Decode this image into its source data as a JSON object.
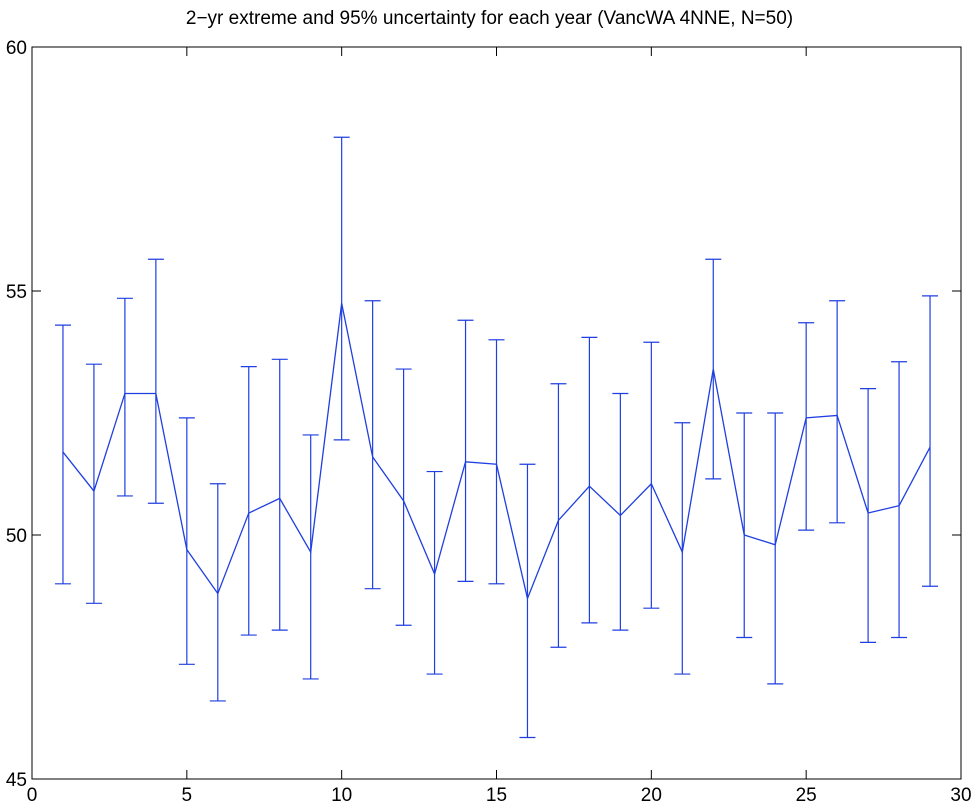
{
  "chart_data": {
    "type": "line",
    "title": "2−yr extreme and 95% uncertainty for each year (VancWA 4NNE, N=50)",
    "xlabel": "",
    "ylabel": "",
    "xlim": [
      0,
      30
    ],
    "ylim": [
      45,
      60
    ],
    "xticks": [
      0,
      5,
      10,
      15,
      20,
      25,
      30
    ],
    "yticks": [
      45,
      50,
      55,
      60
    ],
    "grid": false,
    "color": "#1f3fe0",
    "x": [
      1,
      2,
      3,
      4,
      5,
      6,
      7,
      8,
      9,
      10,
      11,
      12,
      13,
      14,
      15,
      16,
      17,
      18,
      19,
      20,
      21,
      22,
      23,
      24,
      25,
      26,
      27,
      28,
      29
    ],
    "values": [
      51.7,
      50.9,
      52.9,
      52.9,
      49.7,
      48.8,
      50.45,
      50.75,
      49.65,
      54.75,
      51.6,
      50.7,
      49.2,
      51.5,
      51.45,
      48.7,
      50.3,
      51.0,
      50.4,
      51.05,
      49.65,
      53.4,
      50.0,
      49.8,
      52.4,
      52.45,
      50.45,
      50.6,
      51.8
    ],
    "lower": [
      49.0,
      48.6,
      50.8,
      50.65,
      47.35,
      46.6,
      47.95,
      48.05,
      47.05,
      51.95,
      48.9,
      48.15,
      47.15,
      49.05,
      49.0,
      45.85,
      47.7,
      48.2,
      48.05,
      48.5,
      47.15,
      51.15,
      47.9,
      46.95,
      50.1,
      50.25,
      47.8,
      47.9,
      48.95
    ],
    "upper": [
      54.3,
      53.5,
      54.85,
      55.65,
      52.4,
      51.05,
      53.45,
      53.6,
      52.05,
      58.15,
      54.8,
      53.4,
      51.3,
      54.4,
      54.0,
      51.45,
      53.1,
      54.05,
      52.9,
      53.95,
      52.3,
      55.65,
      52.5,
      52.5,
      54.35,
      54.8,
      53.0,
      53.55,
      54.9
    ]
  }
}
